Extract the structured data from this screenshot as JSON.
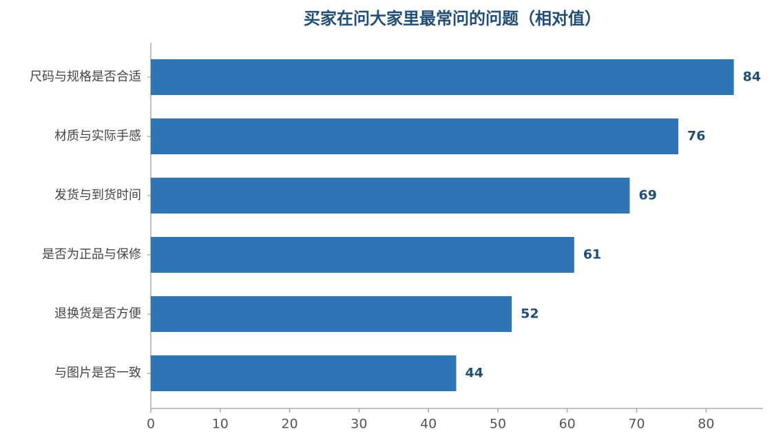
{
  "chart_data": {
    "type": "hbar",
    "title": "买家在问大家里最常问的问题（相对值）",
    "categories": [
      "尺码与规格是否合适",
      "材质与实际手感",
      "发货与到货时间",
      "是否为正品与保修",
      "退换货是否方便",
      "与图片是否一致"
    ],
    "values": [
      84,
      76,
      69,
      61,
      52,
      44
    ],
    "color": "#2e75b6",
    "xlim": [
      0,
      88.2
    ],
    "xticks": [
      0,
      10,
      20,
      30,
      40,
      50,
      60,
      70,
      80
    ],
    "grid": false
  }
}
